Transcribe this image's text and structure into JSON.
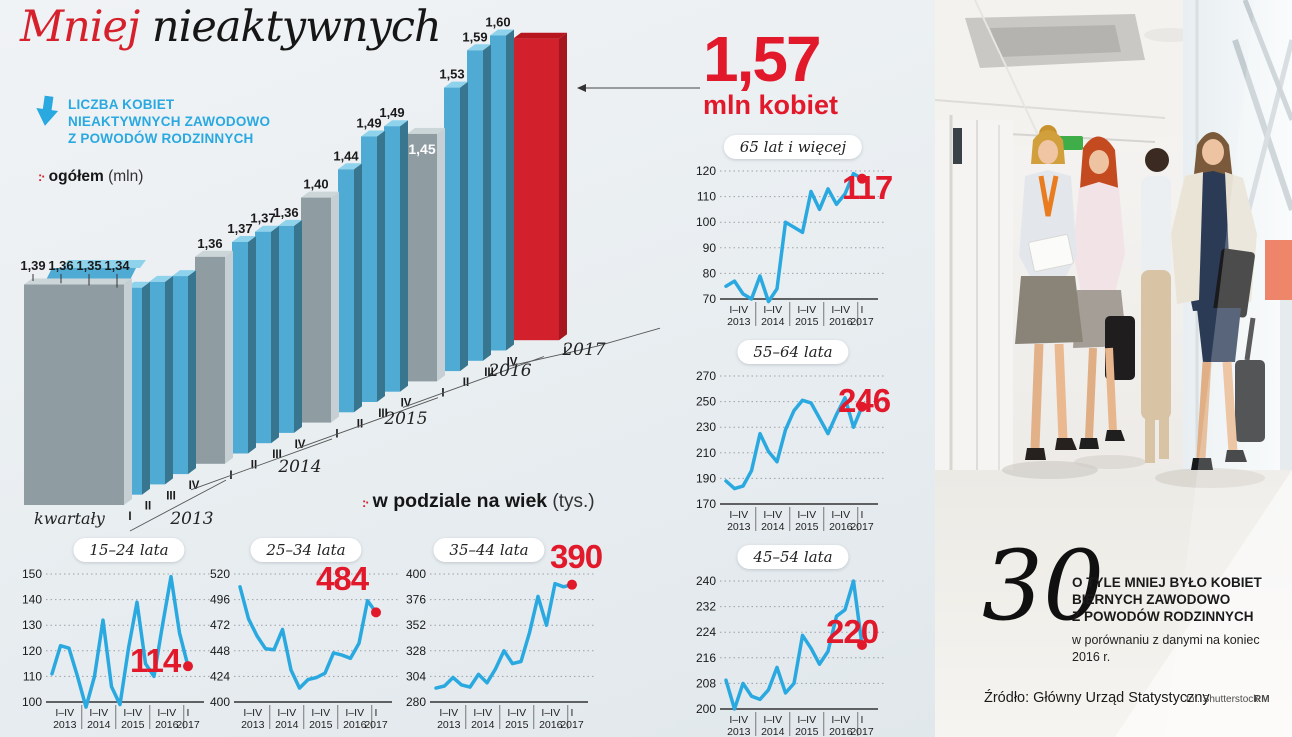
{
  "title": {
    "highlight": "Mniej",
    "rest": " nieaktywnych"
  },
  "legend": {
    "lines": [
      "LICZBA KOBIET",
      "NIEAKTYWNYCH ZAWODOWO",
      "Z POWODÓW RODZINNYCH"
    ],
    "marker": ":·",
    "total_bold": "ogółem",
    "total_unit": "(mln)"
  },
  "callout": {
    "value": "1,57",
    "unit": "mln kobiet"
  },
  "age_section": {
    "marker": ":·",
    "bold": "w podziale na wiek",
    "unit": "(tys.)"
  },
  "age_axis": [
    {
      "q": "I–IV",
      "year": "2013"
    },
    {
      "q": "I–IV",
      "year": "2014"
    },
    {
      "q": "I–IV",
      "year": "2015"
    },
    {
      "q": "I–IV",
      "year": "2016"
    },
    {
      "q": "I",
      "year": "2017"
    }
  ],
  "colors": {
    "accent_red": "#e2192b",
    "line_blue": "#2aa9e0",
    "legend_blue": "#2aa9e1",
    "bar_blue_front": "#4fabd4",
    "bar_blue_side": "#38758f",
    "bar_blue_top": "#8fd2ec",
    "bar_gray_front": "#8f9da3",
    "bar_gray_side": "#c6cfd3",
    "bar_gray_top": "#ccd5d8",
    "bar_red_front": "#d2212c",
    "bar_red_side": "#a5161e",
    "bar_red_top": "#b8161f",
    "axis_dark": "#333333",
    "grid_gray": "#9aa2a8"
  },
  "chart_data": [
    {
      "type": "bar",
      "name": "ogolem-mln",
      "axis_label": "kwartały",
      "quarter_labels": [
        "I",
        "II",
        "III",
        "IV"
      ],
      "ylabel": "ogółem (mln)",
      "groups": [
        {
          "year": "2013",
          "bars": [
            {
              "v": 1.39,
              "label": "1,39"
            },
            {
              "v": 1.36,
              "label": "1,36"
            },
            {
              "v": 1.35,
              "label": "1,35"
            },
            {
              "v": 1.34,
              "label": "1,34"
            }
          ]
        },
        {
          "year": "2014",
          "bars": [
            {
              "v": 1.36,
              "label": "1,36"
            },
            {
              "v": 1.37,
              "label": "1,37"
            },
            {
              "v": 1.37,
              "label": "1,37"
            },
            {
              "v": 1.36,
              "label": "1,36"
            }
          ]
        },
        {
          "year": "2015",
          "bars": [
            {
              "v": 1.4,
              "label": "1,40"
            },
            {
              "v": 1.44,
              "label": "1,44"
            },
            {
              "v": 1.49,
              "label": "1,49"
            },
            {
              "v": 1.49,
              "label": "1,49"
            }
          ]
        },
        {
          "year": "2016",
          "bars": [
            {
              "v": 1.45,
              "label": "1,45",
              "inside": true
            },
            {
              "v": 1.53,
              "label": "1,53"
            },
            {
              "v": 1.59,
              "label": "1,59"
            },
            {
              "v": 1.6,
              "label": "1,60"
            }
          ]
        },
        {
          "year": "2017",
          "bars": [
            {
              "v": 1.57,
              "label": "1,57",
              "highlight": true
            }
          ]
        }
      ]
    },
    {
      "type": "line",
      "title": "15–24 lata",
      "final_label": "114",
      "ymin": 100,
      "ymax": 150,
      "yticks": [
        100,
        110,
        120,
        130,
        140,
        150
      ],
      "values": [
        111,
        122,
        121,
        110,
        98,
        110,
        132,
        106,
        99,
        121,
        139,
        115,
        110,
        130,
        149,
        127,
        114
      ]
    },
    {
      "type": "line",
      "title": "25–34 lata",
      "final_label": "484",
      "ymin": 400,
      "ymax": 520,
      "yticks": [
        400,
        424,
        448,
        472,
        496,
        520
      ],
      "values": [
        508,
        478,
        462,
        450,
        449,
        468,
        430,
        413,
        421,
        423,
        427,
        446,
        444,
        441,
        455,
        495,
        484
      ]
    },
    {
      "type": "line",
      "title": "35–44 lata",
      "final_label": "390",
      "ymin": 280,
      "ymax": 400,
      "yticks": [
        280,
        304,
        328,
        352,
        376,
        400
      ],
      "values": [
        293,
        295,
        303,
        296,
        294,
        306,
        298,
        311,
        328,
        316,
        318,
        345,
        379,
        352,
        391,
        388,
        390
      ]
    },
    {
      "type": "line",
      "title": "65 lat i więcej",
      "final_label": "117",
      "ymin": 70,
      "ymax": 120,
      "yticks": [
        70,
        80,
        90,
        100,
        110,
        120
      ],
      "values": [
        75,
        77,
        72,
        70,
        79,
        69,
        74,
        100,
        98,
        96,
        112,
        105,
        113,
        107,
        111,
        119,
        117
      ]
    },
    {
      "type": "line",
      "title": "55–64 lata",
      "final_label": "246",
      "ymin": 170,
      "ymax": 270,
      "yticks": [
        170,
        190,
        210,
        230,
        250,
        270
      ],
      "values": [
        188,
        182,
        184,
        196,
        225,
        211,
        203,
        228,
        243,
        251,
        249,
        237,
        225,
        240,
        253,
        230,
        246
      ]
    },
    {
      "type": "line",
      "title": "45–54 lata",
      "final_label": "220",
      "ymin": 200,
      "ymax": 240,
      "yticks": [
        200,
        208,
        216,
        224,
        232,
        240
      ],
      "values": [
        209,
        200,
        208,
        204,
        203,
        206,
        213,
        205,
        208,
        223,
        219,
        214,
        218,
        229,
        231,
        240,
        220
      ]
    }
  ],
  "big_number": {
    "value": "30",
    "lines": [
      "O TYLE MNIEJ BYŁO KOBIET",
      "BIERNYCH ZAWODOWO",
      "Z POWODÓW RODZINNYCH"
    ],
    "note": "w porównaniu z danymi na koniec 2016 r."
  },
  "source": "Źródło: Główny Urząd Statystyczny",
  "credits": {
    "photo": "fot. Shutterstock",
    "agency": "RM"
  }
}
